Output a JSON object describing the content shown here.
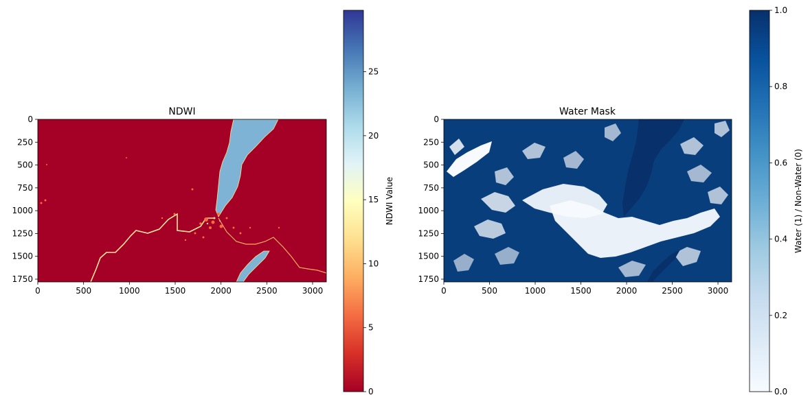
{
  "chart_data": [
    {
      "type": "heatmap",
      "title": "NDWI",
      "xlim": [
        0,
        3150
      ],
      "ylim": [
        1780,
        0
      ],
      "xticks": [
        0,
        500,
        1000,
        1500,
        2000,
        2500,
        3000
      ],
      "yticks": [
        0,
        250,
        500,
        750,
        1000,
        1250,
        1500,
        1750
      ],
      "colormap": "RdYlBu",
      "colorbar": {
        "label": "NDWI Value",
        "range": [
          0,
          29.8
        ],
        "ticks": [
          0,
          5,
          10,
          15,
          20,
          25
        ]
      },
      "features": {
        "background_value": 0,
        "lake_value": 23,
        "river_value": 10
      }
    },
    {
      "type": "heatmap",
      "title": "Water Mask",
      "xlim": [
        0,
        3150
      ],
      "ylim": [
        1780,
        0
      ],
      "xticks": [
        0,
        500,
        1000,
        1500,
        2000,
        2500,
        3000
      ],
      "yticks": [
        0,
        250,
        500,
        750,
        1000,
        1250,
        1500,
        1750
      ],
      "colormap": "Blues",
      "colorbar": {
        "label": "Water (1) / Non-Water (0)",
        "range": [
          0,
          1
        ],
        "ticks": [
          "0.0",
          "0.2",
          "0.4",
          "0.6",
          "0.8",
          "1.0"
        ]
      }
    }
  ]
}
